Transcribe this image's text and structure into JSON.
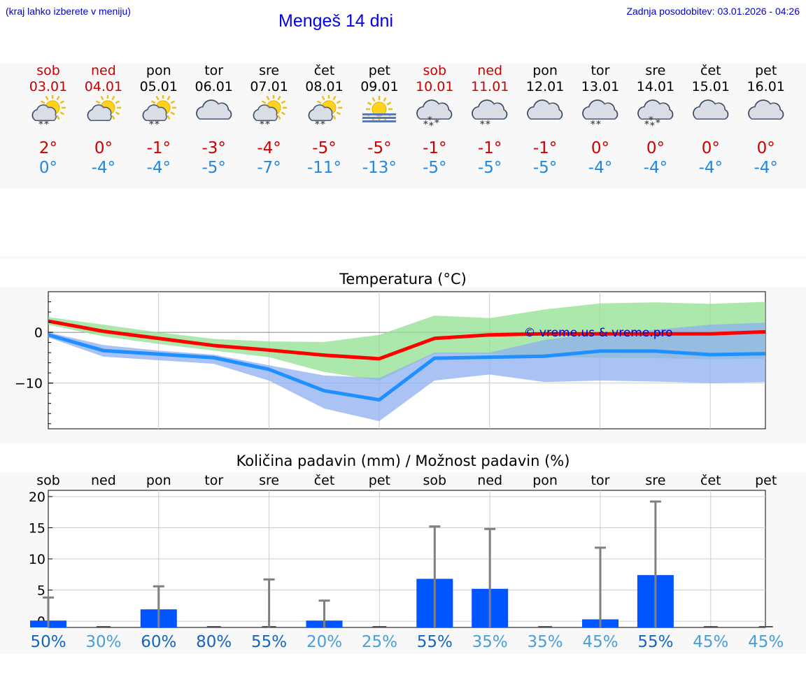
{
  "header": {
    "hint": "(kraj lahko izberete v meniju)",
    "title": "Mengeš 14 dni",
    "updated": "Zadnja posodobitev: 03.01.2026 - 04:26"
  },
  "days": [
    {
      "name": "sob",
      "date": "03.01",
      "weekend": true,
      "icon": "partly-sunny-snow-icon",
      "max": "2°",
      "min": "0°"
    },
    {
      "name": "ned",
      "date": "04.01",
      "weekend": true,
      "icon": "partly-sunny-icon",
      "max": "0°",
      "min": "-4°"
    },
    {
      "name": "pon",
      "date": "05.01",
      "weekend": false,
      "icon": "partly-sunny-snow-icon",
      "max": "-1°",
      "min": "-4°"
    },
    {
      "name": "tor",
      "date": "06.01",
      "weekend": false,
      "icon": "cloudy-icon",
      "max": "-3°",
      "min": "-5°"
    },
    {
      "name": "sre",
      "date": "07.01",
      "weekend": false,
      "icon": "partly-sunny-snow-icon",
      "max": "-4°",
      "min": "-7°"
    },
    {
      "name": "čet",
      "date": "08.01",
      "weekend": false,
      "icon": "partly-sunny-snow-icon",
      "max": "-5°",
      "min": "-11°"
    },
    {
      "name": "pet",
      "date": "09.01",
      "weekend": false,
      "icon": "sun-fog-icon",
      "max": "-5°",
      "min": "-13°"
    },
    {
      "name": "sob",
      "date": "10.01",
      "weekend": true,
      "icon": "cloudy-snow-heavy-icon",
      "max": "-1°",
      "min": "-5°"
    },
    {
      "name": "ned",
      "date": "11.01",
      "weekend": true,
      "icon": "cloudy-snow-icon",
      "max": "-1°",
      "min": "-5°"
    },
    {
      "name": "pon",
      "date": "12.01",
      "weekend": false,
      "icon": "cloudy-icon",
      "max": "-1°",
      "min": "-5°"
    },
    {
      "name": "tor",
      "date": "13.01",
      "weekend": false,
      "icon": "cloudy-snow-icon",
      "max": "0°",
      "min": "-4°"
    },
    {
      "name": "sre",
      "date": "14.01",
      "weekend": false,
      "icon": "cloudy-snow-heavy-icon",
      "max": "0°",
      "min": "-4°"
    },
    {
      "name": "čet",
      "date": "15.01",
      "weekend": false,
      "icon": "cloudy-icon",
      "max": "0°",
      "min": "-4°"
    },
    {
      "name": "pet",
      "date": "16.01",
      "weekend": false,
      "icon": "cloudy-icon",
      "max": "0°",
      "min": "-4°"
    }
  ],
  "colors": {
    "weekend": "#cc0000",
    "weekday": "#000000",
    "max": "#cc0000",
    "min": "#2288dd",
    "maxLine": "#ff0000",
    "minLine": "#1e90ff",
    "maxBand": "#90e090",
    "minBand": "#8eaff0",
    "precipBar": "#0055ff",
    "errorBar": "#808080",
    "pctDark": "#1565c0",
    "pctLight": "#4a9fd8"
  },
  "chart_data": [
    {
      "type": "line",
      "title": "Temperatura (°C)",
      "watermark": "© vreme.us & vreme.pro",
      "ylim": [
        -19,
        8
      ],
      "yticks": [
        0,
        -10
      ],
      "ytick_labels": [
        "0",
        "−10"
      ],
      "x": [
        0,
        1,
        2,
        3,
        4,
        5,
        6,
        7,
        8,
        9,
        10,
        11,
        12,
        13
      ],
      "series": [
        {
          "name": "max",
          "values": [
            2.2,
            0.2,
            -1.2,
            -2.6,
            -3.5,
            -4.5,
            -5.2,
            -1.2,
            -0.5,
            -0.3,
            -0.3,
            -0.3,
            -0.3,
            0.1
          ]
        },
        {
          "name": "min",
          "values": [
            -0.5,
            -3.6,
            -4.3,
            -5.0,
            -7.3,
            -11.5,
            -13.3,
            -5.1,
            -4.9,
            -4.7,
            -3.7,
            -3.7,
            -4.4,
            -4.2
          ]
        },
        {
          "name": "max_band_low",
          "values": [
            1.5,
            -0.8,
            -2.3,
            -3.6,
            -4.9,
            -7.8,
            -9.5,
            -4.2,
            -4.2,
            -4.8,
            -5.0,
            -5.1,
            -5.3,
            -5.2
          ]
        },
        {
          "name": "max_band_high",
          "values": [
            3.0,
            1.5,
            0.0,
            -1.3,
            -1.8,
            -1.9,
            -0.5,
            3.3,
            2.8,
            4.5,
            5.7,
            5.9,
            5.6,
            6.0
          ]
        },
        {
          "name": "min_band_low",
          "values": [
            -1.0,
            -4.8,
            -5.5,
            -6.2,
            -9.5,
            -15.0,
            -17.5,
            -9.5,
            -8.3,
            -9.8,
            -9.5,
            -9.7,
            -10.0,
            -9.8
          ]
        },
        {
          "name": "min_band_high",
          "values": [
            0.0,
            -2.5,
            -3.6,
            -4.4,
            -6.5,
            -8.5,
            -9.0,
            -4.0,
            -4.0,
            -1.5,
            -0.2,
            0.5,
            1.5,
            1.9
          ]
        }
      ]
    },
    {
      "type": "bar",
      "title": "Količina padavin (mm) / Možnost padavin (%)",
      "categories": [
        "sob",
        "ned",
        "pon",
        "tor",
        "sre",
        "čet",
        "pet",
        "sob",
        "ned",
        "pon",
        "tor",
        "sre",
        "čet",
        "pet"
      ],
      "ylim": [
        -1,
        21
      ],
      "yticks": [
        0,
        5,
        10,
        15,
        20
      ],
      "values": [
        0.1,
        0.0,
        1.9,
        0.0,
        0.0,
        0.1,
        0.0,
        6.8,
        5.2,
        0.0,
        0.3,
        7.4,
        0.0,
        0.0
      ],
      "error_max": [
        3.8,
        0.0,
        5.6,
        0.0,
        6.7,
        3.3,
        0.0,
        15.2,
        14.8,
        0.0,
        11.8,
        19.2,
        0.0,
        0.0
      ],
      "probability_labels": [
        "50%",
        "30%",
        "60%",
        "80%",
        "55%",
        "20%",
        "25%",
        "55%",
        "35%",
        "35%",
        "45%",
        "55%",
        "45%",
        "45%"
      ],
      "probability": [
        50,
        30,
        60,
        80,
        55,
        20,
        25,
        55,
        35,
        35,
        45,
        55,
        45,
        45
      ]
    }
  ]
}
